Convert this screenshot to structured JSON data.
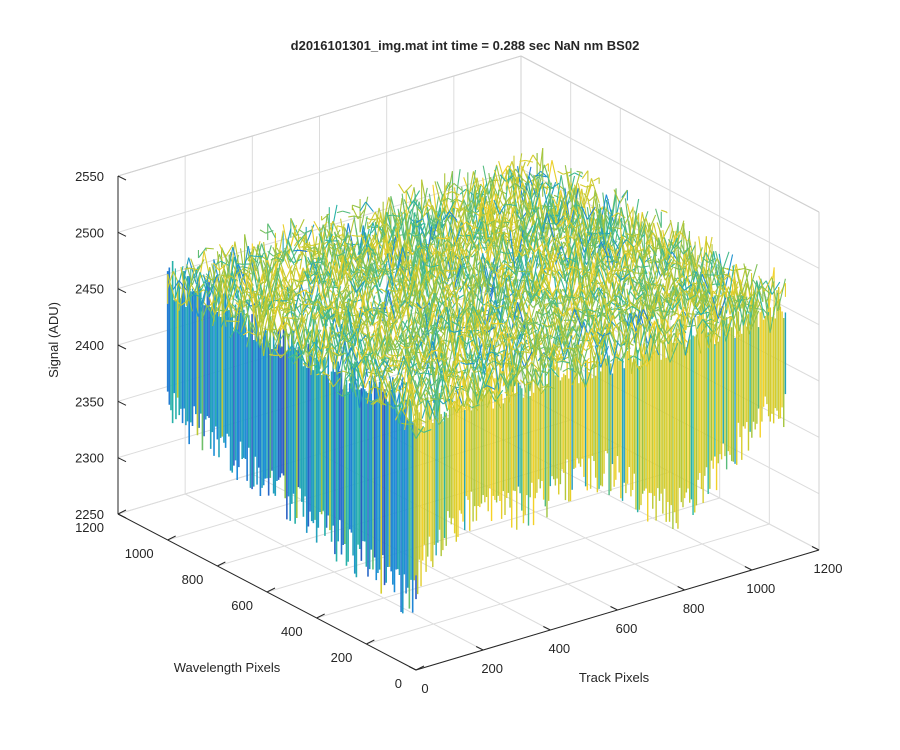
{
  "chart_data": {
    "type": "surface",
    "title": "d2016101301_img.mat int time = 0.288 sec  NaN nm BS02",
    "xlabel": "Track Pixels",
    "ylabel": "Wavelength Pixels",
    "zlabel": "Signal (ADU)",
    "x_ticks": [
      "0",
      "200",
      "400",
      "600",
      "800",
      "1000",
      "1200"
    ],
    "y_ticks": [
      "0",
      "200",
      "400",
      "600",
      "800",
      "1000",
      "1200"
    ],
    "z_ticks": [
      "2250",
      "2300",
      "2350",
      "2400",
      "2450",
      "2500",
      "2550"
    ],
    "xlim": [
      0,
      1200
    ],
    "ylim": [
      0,
      1200
    ],
    "zlim": [
      2250,
      2550
    ],
    "grid": true,
    "box": "3d",
    "colormap": "parula",
    "colors": {
      "low": "#3e26a8",
      "mid_low": "#1d8bd9",
      "mid": "#2ab7a2",
      "mid_high": "#a7c539",
      "high": "#f9d226"
    },
    "surface_summary": {
      "plateau_level": 2480,
      "noise_amplitude": 50,
      "front_edge_min": 2330,
      "wavelength_extent": [
        0,
        1000
      ],
      "track_extent": [
        0,
        1100
      ]
    }
  }
}
